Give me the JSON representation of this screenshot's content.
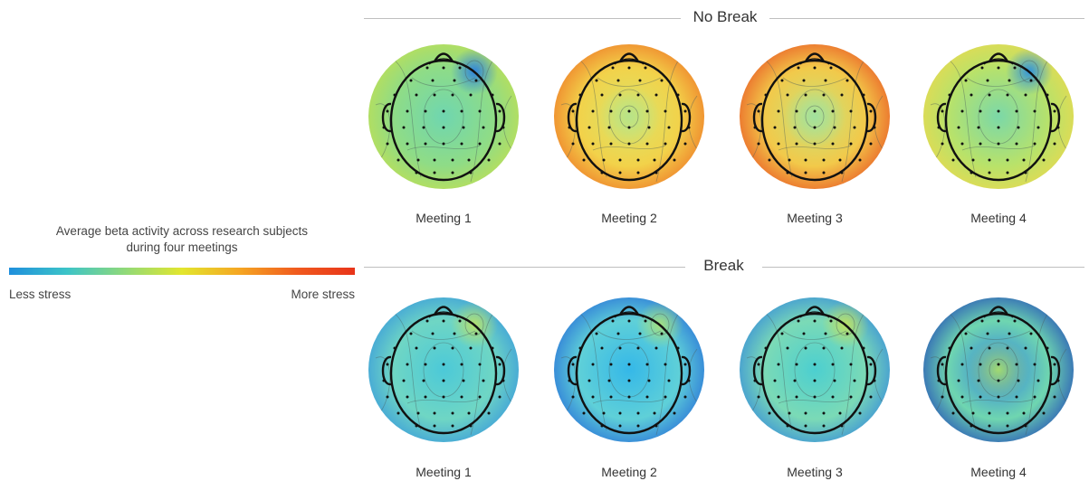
{
  "legend": {
    "title_line1": "Average beta activity across research subjects",
    "title_line2": "during four meetings",
    "low_label": "Less stress",
    "high_label": "More stress",
    "gradient_colors": [
      "#1f8fdc",
      "#3cc4c8",
      "#8fd97a",
      "#e2e62e",
      "#f5a623",
      "#f05a1e",
      "#e8341a"
    ]
  },
  "sections": [
    {
      "title": "No Break",
      "maps": [
        {
          "label": "Meeting 1",
          "colors": {
            "base": "#6fd6b0",
            "mid": "#8fdc86",
            "edge": "#c9df4a",
            "accent": "#2a7fe0",
            "accent_pos": "top-right"
          }
        },
        {
          "label": "Meeting 2",
          "colors": {
            "base": "#d9e56a",
            "mid": "#f2d24a",
            "edge": "#ef6b22",
            "accent": "#b5e38a",
            "accent_pos": "center"
          }
        },
        {
          "label": "Meeting 3",
          "colors": {
            "base": "#c6e47a",
            "mid": "#f2c94a",
            "edge": "#e8461e",
            "accent": "#9fe0a0",
            "accent_pos": "center"
          }
        },
        {
          "label": "Meeting 4",
          "colors": {
            "base": "#7bd8a8",
            "mid": "#b8e26a",
            "edge": "#f2d84a",
            "accent": "#2a8fe0",
            "accent_pos": "top-right"
          }
        }
      ]
    },
    {
      "title": "Break",
      "maps": [
        {
          "label": "Meeting 1",
          "colors": {
            "base": "#4cc9d8",
            "mid": "#6fd6c4",
            "edge": "#2f8fe0",
            "accent": "#b8e06a",
            "accent_pos": "top-right"
          }
        },
        {
          "label": "Meeting 2",
          "colors": {
            "base": "#35b8e8",
            "mid": "#5fd0d8",
            "edge": "#1e5fd8",
            "accent": "#a8e07a",
            "accent_pos": "top-right"
          }
        },
        {
          "label": "Meeting 3",
          "colors": {
            "base": "#4ccfd0",
            "mid": "#7bdab6",
            "edge": "#2a7fe0",
            "accent": "#c0e060",
            "accent_pos": "top-right"
          }
        },
        {
          "label": "Meeting 4",
          "colors": {
            "base": "#2f7fe0",
            "mid": "#6fd6b0",
            "edge": "#1638b8",
            "accent": "#a8df6a",
            "accent_pos": "center"
          }
        }
      ]
    }
  ]
}
